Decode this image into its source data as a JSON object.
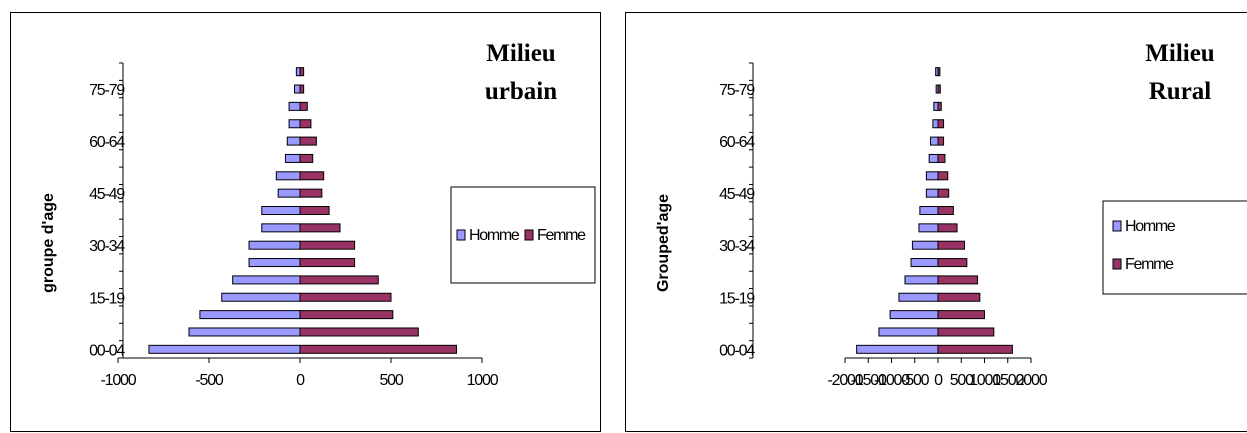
{
  "colors": {
    "homme": "#9999ff",
    "femme": "#993366",
    "axis": "#000000"
  },
  "chart_data": [
    {
      "type": "bar",
      "orientation": "horizontal",
      "title_lines": [
        "Milieu",
        "urbain"
      ],
      "ylabel": "groupe d'age",
      "xlabel": "",
      "xlim": [
        -1000,
        1000
      ],
      "xticks": [
        -1000,
        -500,
        0,
        500,
        1000
      ],
      "xtick_labels": [
        "-1000",
        "-500",
        "0",
        "500",
        "1000"
      ],
      "category_tick_labels": [
        "00-04",
        "15-19",
        "30-34",
        "45-49",
        "60-64",
        "75-79"
      ],
      "legend_placement": "right",
      "series": [
        {
          "name": "Homme",
          "values": [
            -830,
            -610,
            -550,
            -430,
            -370,
            -280,
            -280,
            -210,
            -210,
            -120,
            -130,
            -80,
            -70,
            -60,
            -60,
            -30,
            -20
          ]
        },
        {
          "name": "Femme",
          "values": [
            860,
            650,
            510,
            500,
            430,
            300,
            300,
            220,
            160,
            120,
            130,
            70,
            90,
            60,
            40,
            20,
            20
          ]
        }
      ],
      "grid": false
    },
    {
      "type": "bar",
      "orientation": "horizontal",
      "title_lines": [
        "Milieu",
        "Rural"
      ],
      "ylabel": "Grouped'age",
      "xlabel": "",
      "xlim": [
        -2000,
        2000
      ],
      "xticks": [
        -2000,
        -1500,
        -1000,
        -500,
        0,
        500,
        1000,
        1500,
        2000
      ],
      "xtick_labels": [
        "-2000",
        "-1500",
        "-1000",
        "-500",
        "0",
        "500",
        "1000",
        "1500",
        "2000"
      ],
      "category_tick_labels": [
        "00-04",
        "15-19",
        "30-34",
        "45-49",
        "60-64",
        "75-79"
      ],
      "legend_placement": "right",
      "series": [
        {
          "name": "Homme",
          "values": [
            -1750,
            -1270,
            -1030,
            -840,
            -710,
            -580,
            -550,
            -410,
            -390,
            -250,
            -250,
            -190,
            -160,
            -110,
            -90,
            -40,
            -50
          ]
        },
        {
          "name": "Femme",
          "values": [
            1600,
            1200,
            1000,
            900,
            850,
            620,
            570,
            410,
            330,
            230,
            210,
            150,
            120,
            120,
            70,
            50,
            40
          ]
        }
      ],
      "grid": false
    }
  ]
}
